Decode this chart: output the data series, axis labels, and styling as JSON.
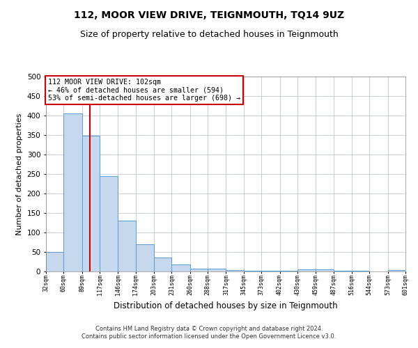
{
  "title": "112, MOOR VIEW DRIVE, TEIGNMOUTH, TQ14 9UZ",
  "subtitle": "Size of property relative to detached houses in Teignmouth",
  "xlabel": "Distribution of detached houses by size in Teignmouth",
  "ylabel": "Number of detached properties",
  "footer_line1": "Contains HM Land Registry data © Crown copyright and database right 2024.",
  "footer_line2": "Contains public sector information licensed under the Open Government Licence v3.0.",
  "annotation_line1": "112 MOOR VIEW DRIVE: 102sqm",
  "annotation_line2": "← 46% of detached houses are smaller (594)",
  "annotation_line3": "53% of semi-detached houses are larger (698) →",
  "property_size": 102,
  "bin_edges": [
    32,
    60,
    89,
    117,
    146,
    174,
    203,
    231,
    260,
    288,
    317,
    345,
    373,
    402,
    430,
    459,
    487,
    516,
    544,
    573,
    601
  ],
  "bar_heights": [
    50,
    405,
    348,
    245,
    130,
    70,
    35,
    18,
    8,
    7,
    3,
    1,
    1,
    1,
    5,
    5,
    2,
    1,
    0,
    3
  ],
  "bar_color": "#c5d8ed",
  "bar_edge_color": "#5b9bd5",
  "vline_color": "#cc0000",
  "vline_x": 102,
  "ylim": [
    0,
    500
  ],
  "yticks": [
    0,
    50,
    100,
    150,
    200,
    250,
    300,
    350,
    400,
    450,
    500
  ],
  "bg_color": "#ffffff",
  "grid_color": "#c0c8d8",
  "title_fontsize": 10,
  "subtitle_fontsize": 9,
  "annotation_box_color": "#cc0000",
  "ylabel_fontsize": 8,
  "xlabel_fontsize": 8.5,
  "footer_fontsize": 6,
  "xtick_fontsize": 6,
  "ytick_fontsize": 7.5
}
